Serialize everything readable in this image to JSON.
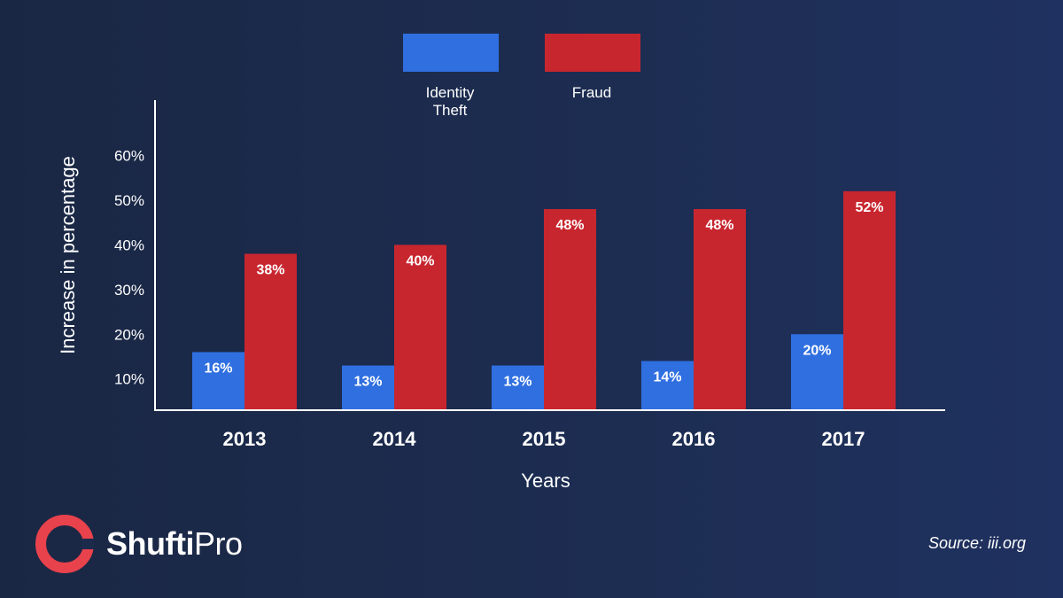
{
  "brand": {
    "name_bold": "Shufti",
    "name_light": "Pro"
  },
  "source": "Source: iii.org",
  "colors": {
    "identity_theft": "#2f6fe0",
    "fraud": "#c8262f",
    "logo": "#e8424c"
  },
  "chart_data": {
    "type": "bar",
    "categories": [
      "2013",
      "2014",
      "2015",
      "2016",
      "2017"
    ],
    "series": [
      {
        "name": "Identity Theft",
        "legend_lines": [
          "Identity",
          "Theft"
        ],
        "values": [
          16,
          13,
          13,
          14,
          20
        ],
        "labels": [
          "16%",
          "13%",
          "13%",
          "14%",
          "20%"
        ]
      },
      {
        "name": "Fraud",
        "legend_lines": [
          "Fraud"
        ],
        "values": [
          38,
          40,
          48,
          48,
          52
        ],
        "labels": [
          "38%",
          "40%",
          "48%",
          "48%",
          "52%"
        ]
      }
    ],
    "xlabel": "Years",
    "ylabel": "Increase in percentage",
    "yticks": [
      10,
      20,
      30,
      40,
      50,
      60
    ],
    "ytick_labels": [
      "10%",
      "20%",
      "30%",
      "40%",
      "50%",
      "60%"
    ],
    "ylim": [
      3,
      71
    ],
    "legend_position": "top-center",
    "grid": false
  }
}
